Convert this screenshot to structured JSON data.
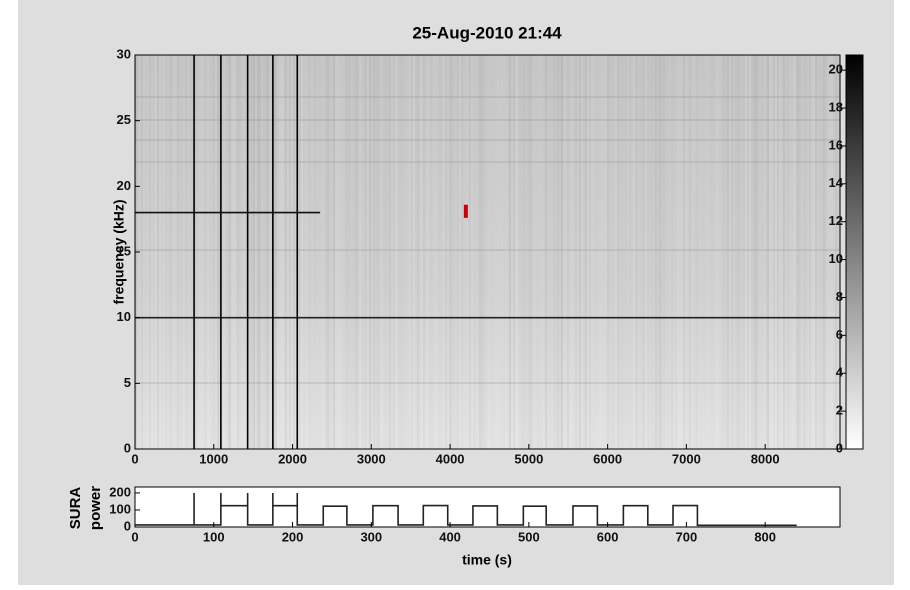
{
  "chart_data": [
    {
      "type": "line",
      "title": "25-Aug-2010 21:44",
      "ylabel": "frequency (kHz)",
      "xlim": [
        0,
        8950
      ],
      "ylim": [
        0,
        30
      ],
      "xticks": [
        0,
        1000,
        2000,
        3000,
        4000,
        5000,
        6000,
        7000,
        8000
      ],
      "yticks": [
        0,
        5,
        10,
        15,
        20,
        25,
        30
      ],
      "series": [
        {
          "color": "#222222",
          "x": [
            0,
            8950
          ],
          "values": [
            10,
            10
          ]
        },
        {
          "color": "#111111",
          "x": [
            0,
            2350
          ],
          "values": [
            18,
            18
          ]
        },
        {
          "color": "#000000",
          "x": [
            750,
            750
          ],
          "values": [
            0,
            30
          ]
        },
        {
          "color": "#000000",
          "x": [
            1090,
            1090
          ],
          "values": [
            0,
            30
          ]
        },
        {
          "color": "#000000",
          "x": [
            1430,
            1430
          ],
          "values": [
            0,
            30
          ]
        },
        {
          "color": "#000000",
          "x": [
            1750,
            1750
          ],
          "values": [
            0,
            30
          ]
        },
        {
          "color": "#000000",
          "x": [
            2060,
            2060
          ],
          "values": [
            0,
            30
          ]
        },
        {
          "color": "#cc0000",
          "x": [
            4200,
            4200
          ],
          "values": [
            17.6,
            18.6
          ]
        }
      ],
      "colorbar": {
        "lim": [
          0,
          20.8
        ],
        "ticks": [
          0,
          2,
          4,
          6,
          8,
          10,
          12,
          14,
          16,
          18,
          20
        ]
      }
    },
    {
      "type": "line",
      "xlabel": "time (s)",
      "ylabel_lines": [
        "SURA",
        "power"
      ],
      "xlim": [
        0,
        895
      ],
      "ylim": [
        0,
        235
      ],
      "xticks": [
        0,
        100,
        200,
        300,
        400,
        500,
        600,
        700,
        800
      ],
      "yticks": [
        0,
        100,
        200
      ],
      "series": [
        {
          "color": "#222222",
          "x": [
            0,
            75,
            75,
            75,
            109,
            109,
            109,
            143,
            143,
            143,
            175,
            175,
            175,
            206,
            206,
            206,
            239,
            239,
            269,
            269,
            302,
            302,
            334,
            334,
            366,
            366,
            397,
            397,
            429,
            429,
            460,
            460,
            493,
            493,
            522,
            522,
            556,
            556,
            587,
            587,
            620,
            620,
            651,
            651,
            683,
            683,
            714,
            714,
            840
          ],
          "values": [
            12,
            12,
            200,
            12,
            12,
            200,
            125,
            125,
            200,
            12,
            12,
            200,
            125,
            125,
            200,
            12,
            12,
            122,
            122,
            12,
            12,
            125,
            125,
            12,
            12,
            126,
            126,
            12,
            12,
            124,
            124,
            12,
            12,
            122,
            122,
            12,
            12,
            124,
            124,
            12,
            12,
            125,
            125,
            12,
            12,
            126,
            126,
            10,
            10
          ]
        }
      ]
    }
  ]
}
